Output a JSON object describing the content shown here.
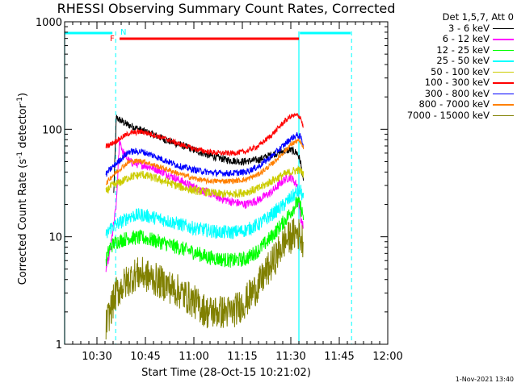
{
  "chart_data": {
    "type": "line",
    "title": "RHESSI Observing Summary Count Rates, Corrected",
    "xlabel": "Start Time (28-Oct-15 10:21:02)",
    "ylabel_parts": [
      "Corrected Count Rate (s",
      "-1",
      " detector",
      "-1",
      ")"
    ],
    "yscale": "log",
    "ylim": [
      1,
      1000
    ],
    "y_ticks": [
      {
        "value": 1,
        "label": "1"
      },
      {
        "value": 10,
        "label": "10"
      },
      {
        "value": 100,
        "label": "100"
      },
      {
        "value": 1000,
        "label": "1000"
      }
    ],
    "xlim_minutes": [
      0,
      100
    ],
    "x_ticks": [
      {
        "minute": 10,
        "label": "10:30"
      },
      {
        "minute": 25,
        "label": "10:45"
      },
      {
        "minute": 40,
        "label": "11:00"
      },
      {
        "minute": 55,
        "label": "11:15"
      },
      {
        "minute": 70,
        "label": "11:30"
      },
      {
        "minute": 85,
        "label": "11:45"
      },
      {
        "minute": 100,
        "label": "12:00"
      }
    ],
    "legend_header": "Det 1,5,7, Att 0",
    "series": [
      {
        "name": "3 - 6 keV",
        "color": "#000000",
        "x": [
          15.2,
          16,
          19,
          22,
          25,
          28,
          32,
          38,
          44,
          50,
          55,
          60,
          64,
          68,
          70,
          72,
          73,
          74
        ],
        "y": [
          25,
          128,
          112,
          103,
          95,
          88,
          78,
          68,
          58,
          52,
          50,
          52,
          58,
          63,
          64,
          60,
          50,
          30
        ],
        "noise": 0.035
      },
      {
        "name": "6 - 12 keV",
        "color": "#ff00ff",
        "x": [
          12.8,
          14,
          16,
          17,
          18,
          20,
          22,
          25,
          28,
          32,
          36,
          40,
          44,
          48,
          52,
          56,
          60,
          64,
          68,
          70,
          72,
          73,
          74
        ],
        "y": [
          5,
          7,
          20,
          80,
          62,
          50,
          48,
          46,
          43,
          38,
          33,
          29,
          26,
          23,
          21,
          20,
          22,
          26,
          34,
          36,
          30,
          15,
          12
        ],
        "noise": 0.04
      },
      {
        "name": "12 - 25 keV",
        "color": "#00ff00",
        "x": [
          12.8,
          14,
          16,
          20,
          24,
          28,
          32,
          36,
          40,
          44,
          48,
          52,
          56,
          60,
          64,
          68,
          70,
          72,
          73,
          74
        ],
        "y": [
          6,
          8,
          9,
          9.8,
          9.8,
          9.2,
          8.5,
          7.8,
          7.2,
          6.5,
          6.2,
          6.0,
          6.2,
          7.5,
          10,
          14,
          17,
          21,
          19,
          15
        ],
        "noise": 0.07
      },
      {
        "name": "25 - 50 keV",
        "color": "#00ffff",
        "x": [
          12.8,
          14,
          16,
          18,
          20,
          24,
          28,
          32,
          36,
          40,
          44,
          48,
          52,
          56,
          60,
          64,
          68,
          70,
          72,
          73,
          74
        ],
        "y": [
          10,
          12,
          13,
          14,
          15.5,
          16,
          15,
          14,
          13,
          12,
          11.5,
          11,
          11,
          11.5,
          13,
          16,
          20,
          23,
          26,
          27,
          22
        ],
        "noise": 0.065
      },
      {
        "name": "50 - 100 keV",
        "color": "#cccc00",
        "x": [
          12.8,
          14,
          16,
          18,
          20,
          24,
          28,
          32,
          36,
          40,
          44,
          48,
          52,
          56,
          60,
          64,
          68,
          70,
          72,
          73,
          74
        ],
        "y": [
          26,
          29,
          31,
          33,
          36,
          38,
          35,
          32,
          29,
          27,
          26,
          25,
          25,
          26,
          28,
          33,
          38,
          40,
          42,
          41,
          38
        ],
        "noise": 0.04
      },
      {
        "name": "100 - 300 keV",
        "color": "#ff0000",
        "x": [
          12.8,
          14,
          16,
          18,
          20,
          24,
          28,
          32,
          36,
          40,
          44,
          48,
          52,
          56,
          60,
          64,
          68,
          70,
          72,
          73,
          74
        ],
        "y": [
          70,
          72,
          78,
          85,
          92,
          95,
          88,
          80,
          72,
          66,
          62,
          60,
          60,
          62,
          70,
          88,
          118,
          132,
          135,
          130,
          100
        ],
        "noise": 0.025
      },
      {
        "name": "300 - 800 keV",
        "color": "#0000ff",
        "x": [
          12.8,
          14,
          16,
          18,
          20,
          24,
          28,
          32,
          36,
          40,
          44,
          48,
          52,
          56,
          60,
          64,
          68,
          70,
          72,
          73,
          74
        ],
        "y": [
          38,
          42,
          48,
          55,
          62,
          62,
          56,
          50,
          45,
          42,
          40,
          39,
          39,
          40,
          45,
          56,
          72,
          82,
          88,
          85,
          70
        ],
        "noise": 0.03
      },
      {
        "name": "800 - 7000 keV",
        "color": "#ff8000",
        "x": [
          12.8,
          14,
          16,
          18,
          20,
          24,
          28,
          32,
          36,
          40,
          44,
          48,
          52,
          56,
          60,
          64,
          68,
          70,
          72,
          73,
          74
        ],
        "y": [
          31,
          35,
          40,
          45,
          50,
          51,
          46,
          42,
          38,
          35,
          33,
          33,
          33,
          34,
          38,
          47,
          62,
          72,
          78,
          76,
          65
        ],
        "noise": 0.025
      },
      {
        "name": "7000 - 15000 keV",
        "color": "#808000",
        "x": [
          12.8,
          14,
          16,
          18,
          20,
          22,
          24,
          28,
          32,
          36,
          40,
          44,
          48,
          52,
          56,
          58,
          60,
          62,
          64,
          66,
          68,
          70,
          72,
          73,
          74
        ],
        "y": [
          1.5,
          2,
          3,
          3.5,
          4,
          4.5,
          4.5,
          4,
          3.5,
          3,
          2.5,
          2,
          2,
          2,
          2.5,
          3,
          3.5,
          4.5,
          5.5,
          7,
          9,
          10,
          11,
          10,
          9
        ],
        "noise": 0.16
      }
    ],
    "annotations": {
      "flare_flag": {
        "label": "F",
        "start_min": 17,
        "end_min": 72.5,
        "color": "#ff0000"
      },
      "night_flag": {
        "label": "N",
        "start_min": 16,
        "end_min": 72.5,
        "color": "#00ffff"
      },
      "day_bars": [
        {
          "start_min": 0,
          "end_min": 14.8,
          "color": "#00ffff"
        },
        {
          "start_min": 72.8,
          "end_min": 88.5,
          "color": "#00ffff"
        }
      ],
      "solid_vlines_min": [
        0,
        72.5
      ],
      "dashed_vlines_min": [
        15.8,
        88.8
      ]
    }
  },
  "footer_stamp": "1-Nov-2021 13:40"
}
